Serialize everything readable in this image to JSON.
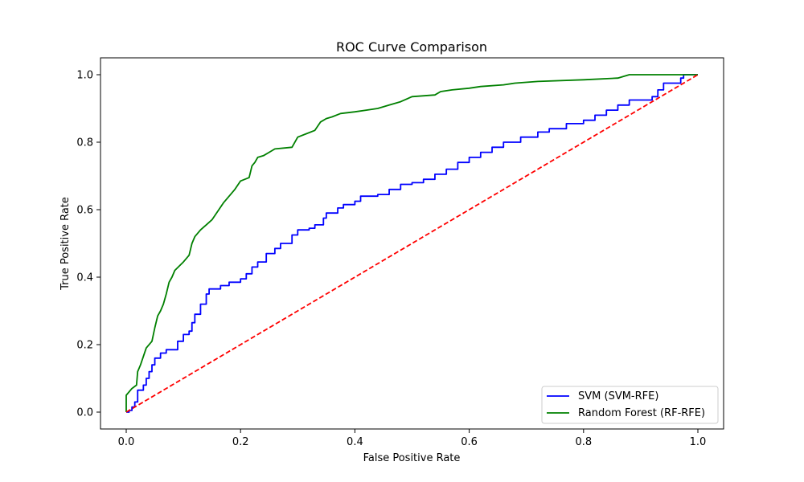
{
  "chart_data": {
    "type": "line",
    "title": "ROC Curve Comparison",
    "xlabel": "False Positive Rate",
    "ylabel": "True Positive Rate",
    "xlim": [
      -0.045,
      1.045
    ],
    "ylim": [
      -0.05,
      1.05
    ],
    "x_ticks": [
      0.0,
      0.2,
      0.4,
      0.6,
      0.8,
      1.0
    ],
    "y_ticks": [
      0.0,
      0.2,
      0.4,
      0.6,
      0.8,
      1.0
    ],
    "x_tick_labels": [
      "0.0",
      "0.2",
      "0.4",
      "0.6",
      "0.8",
      "1.0"
    ],
    "y_tick_labels": [
      "0.0",
      "0.2",
      "0.4",
      "0.6",
      "0.8",
      "1.0"
    ],
    "grid": false,
    "legend_position": "lower-right",
    "series": [
      {
        "name": "SVM (SVM-RFE)",
        "color": "#0000ff",
        "style": "step",
        "points": [
          [
            0.0,
            0.0
          ],
          [
            0.005,
            0.005
          ],
          [
            0.01,
            0.015
          ],
          [
            0.015,
            0.03
          ],
          [
            0.02,
            0.065
          ],
          [
            0.03,
            0.08
          ],
          [
            0.035,
            0.1
          ],
          [
            0.04,
            0.12
          ],
          [
            0.045,
            0.14
          ],
          [
            0.05,
            0.16
          ],
          [
            0.06,
            0.175
          ],
          [
            0.07,
            0.185
          ],
          [
            0.09,
            0.21
          ],
          [
            0.1,
            0.23
          ],
          [
            0.11,
            0.24
          ],
          [
            0.115,
            0.265
          ],
          [
            0.12,
            0.29
          ],
          [
            0.13,
            0.32
          ],
          [
            0.14,
            0.35
          ],
          [
            0.145,
            0.365
          ],
          [
            0.165,
            0.375
          ],
          [
            0.18,
            0.385
          ],
          [
            0.2,
            0.395
          ],
          [
            0.21,
            0.41
          ],
          [
            0.22,
            0.43
          ],
          [
            0.23,
            0.445
          ],
          [
            0.245,
            0.47
          ],
          [
            0.26,
            0.485
          ],
          [
            0.27,
            0.5
          ],
          [
            0.29,
            0.525
          ],
          [
            0.3,
            0.54
          ],
          [
            0.32,
            0.545
          ],
          [
            0.33,
            0.555
          ],
          [
            0.345,
            0.575
          ],
          [
            0.35,
            0.59
          ],
          [
            0.37,
            0.605
          ],
          [
            0.38,
            0.615
          ],
          [
            0.4,
            0.625
          ],
          [
            0.41,
            0.64
          ],
          [
            0.44,
            0.645
          ],
          [
            0.46,
            0.66
          ],
          [
            0.48,
            0.675
          ],
          [
            0.5,
            0.68
          ],
          [
            0.52,
            0.69
          ],
          [
            0.54,
            0.705
          ],
          [
            0.56,
            0.72
          ],
          [
            0.58,
            0.74
          ],
          [
            0.6,
            0.755
          ],
          [
            0.62,
            0.77
          ],
          [
            0.64,
            0.785
          ],
          [
            0.66,
            0.8
          ],
          [
            0.69,
            0.815
          ],
          [
            0.72,
            0.83
          ],
          [
            0.74,
            0.84
          ],
          [
            0.77,
            0.855
          ],
          [
            0.8,
            0.865
          ],
          [
            0.82,
            0.88
          ],
          [
            0.84,
            0.895
          ],
          [
            0.86,
            0.91
          ],
          [
            0.88,
            0.925
          ],
          [
            0.92,
            0.935
          ],
          [
            0.93,
            0.955
          ],
          [
            0.94,
            0.975
          ],
          [
            0.97,
            0.99
          ],
          [
            0.975,
            1.0
          ],
          [
            1.0,
            1.0
          ]
        ]
      },
      {
        "name": "Random Forest (RF-RFE)",
        "color": "#008000",
        "style": "line",
        "points": [
          [
            0.0,
            0.0
          ],
          [
            0.0,
            0.05
          ],
          [
            0.01,
            0.07
          ],
          [
            0.018,
            0.08
          ],
          [
            0.02,
            0.12
          ],
          [
            0.025,
            0.14
          ],
          [
            0.03,
            0.165
          ],
          [
            0.035,
            0.19
          ],
          [
            0.045,
            0.21
          ],
          [
            0.05,
            0.25
          ],
          [
            0.055,
            0.285
          ],
          [
            0.06,
            0.3
          ],
          [
            0.065,
            0.32
          ],
          [
            0.07,
            0.35
          ],
          [
            0.075,
            0.385
          ],
          [
            0.08,
            0.4
          ],
          [
            0.085,
            0.42
          ],
          [
            0.1,
            0.445
          ],
          [
            0.11,
            0.465
          ],
          [
            0.115,
            0.5
          ],
          [
            0.12,
            0.52
          ],
          [
            0.13,
            0.54
          ],
          [
            0.14,
            0.555
          ],
          [
            0.15,
            0.57
          ],
          [
            0.16,
            0.595
          ],
          [
            0.17,
            0.62
          ],
          [
            0.18,
            0.64
          ],
          [
            0.19,
            0.66
          ],
          [
            0.2,
            0.685
          ],
          [
            0.215,
            0.695
          ],
          [
            0.22,
            0.73
          ],
          [
            0.225,
            0.74
          ],
          [
            0.23,
            0.755
          ],
          [
            0.24,
            0.76
          ],
          [
            0.25,
            0.77
          ],
          [
            0.26,
            0.78
          ],
          [
            0.29,
            0.785
          ],
          [
            0.3,
            0.815
          ],
          [
            0.315,
            0.825
          ],
          [
            0.33,
            0.835
          ],
          [
            0.34,
            0.86
          ],
          [
            0.35,
            0.87
          ],
          [
            0.36,
            0.875
          ],
          [
            0.375,
            0.885
          ],
          [
            0.4,
            0.89
          ],
          [
            0.42,
            0.895
          ],
          [
            0.44,
            0.9
          ],
          [
            0.46,
            0.91
          ],
          [
            0.48,
            0.92
          ],
          [
            0.5,
            0.935
          ],
          [
            0.54,
            0.94
          ],
          [
            0.55,
            0.95
          ],
          [
            0.57,
            0.955
          ],
          [
            0.6,
            0.96
          ],
          [
            0.62,
            0.965
          ],
          [
            0.66,
            0.97
          ],
          [
            0.68,
            0.975
          ],
          [
            0.72,
            0.98
          ],
          [
            0.8,
            0.985
          ],
          [
            0.86,
            0.99
          ],
          [
            0.88,
            1.0
          ],
          [
            1.0,
            1.0
          ]
        ]
      }
    ],
    "reference_line": {
      "color": "#ff0000",
      "style": "dashed",
      "points": [
        [
          0.0,
          0.0
        ],
        [
          1.0,
          1.0
        ]
      ]
    }
  }
}
